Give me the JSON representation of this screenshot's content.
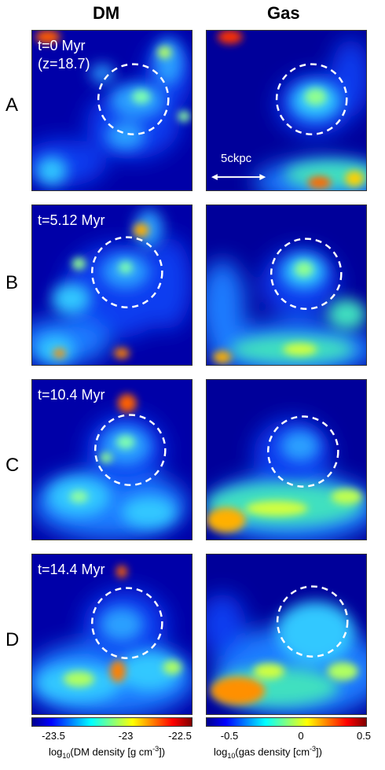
{
  "columns": {
    "dm_title": "DM",
    "gas_title": "Gas"
  },
  "rows": [
    {
      "label": "A",
      "time": "t=0 Myr",
      "redshift": "(z=18.7)"
    },
    {
      "label": "B",
      "time": "t=5.12 Myr"
    },
    {
      "label": "C",
      "time": "t=10.4 Myr"
    },
    {
      "label": "D",
      "time": "t=14.4 Myr"
    }
  ],
  "scale_bar": {
    "label": "5ckpc"
  },
  "colorbars": {
    "dm": {
      "ticks": [
        "-23.5",
        "-23",
        "-22.5"
      ],
      "label_pre": "log",
      "label_sub": "10",
      "label_post": "(DM density [g cm",
      "label_sup": "-3",
      "label_end": "])"
    },
    "gas": {
      "ticks": [
        "-0.5",
        "0",
        "0.5"
      ],
      "label_pre": "log",
      "label_sub": "10",
      "label_post": "(gas density [cm",
      "label_sup": "-3",
      "label_end": "])"
    }
  },
  "colors": {
    "background": "#00008b",
    "low": "#0a1fd6",
    "mid": "#33bbff",
    "high": "#ffd800",
    "peak": "#d40000"
  }
}
